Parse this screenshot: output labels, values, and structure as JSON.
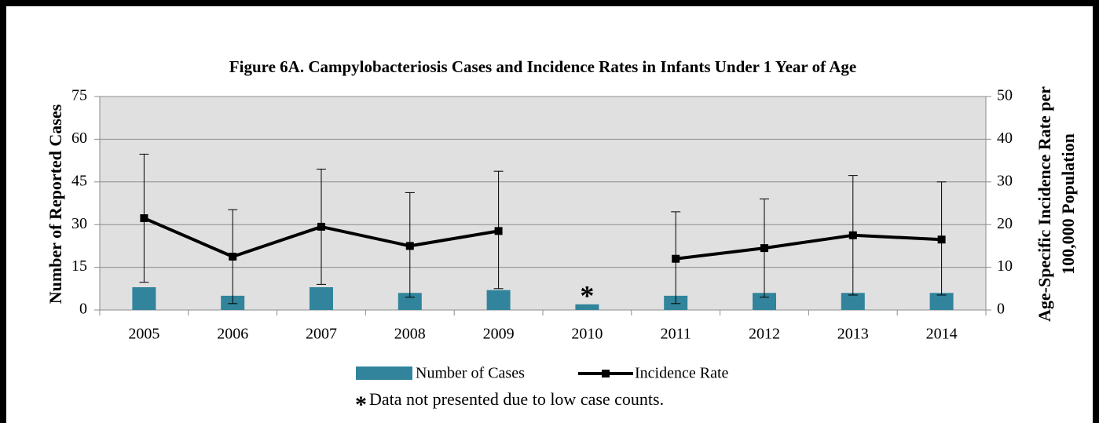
{
  "chart_data": {
    "type": "bar-line",
    "title": "Figure 6A. Campylobacteriosis Cases and Incidence Rates in Infants Under 1 Year of Age",
    "ylabel": "Number of Reported Cases",
    "y2label": [
      "Age-Specific Incidence Rate per",
      "100,000 Population"
    ],
    "categories": [
      "2005",
      "2006",
      "2007",
      "2008",
      "2009",
      "2010",
      "2011",
      "2012",
      "2013",
      "2014"
    ],
    "series": [
      {
        "name": "Number of Cases",
        "type": "bar",
        "color": "#31849b",
        "values": [
          8,
          5,
          8,
          6,
          7,
          2,
          5,
          6,
          6,
          6
        ]
      },
      {
        "name": "Incidence Rate",
        "type": "line",
        "axis": "y2",
        "color": "#000000",
        "values": [
          21.5,
          12.5,
          19.5,
          15,
          18.5,
          null,
          12,
          14.5,
          17.5,
          16.5
        ],
        "ci_lower": [
          6.5,
          1.5,
          6,
          3,
          5,
          null,
          1.5,
          3,
          3.5,
          3.5
        ],
        "ci_upper": [
          36.5,
          23.5,
          33,
          27.5,
          32.5,
          null,
          23,
          26,
          31.5,
          30
        ]
      }
    ],
    "ylim": [
      0,
      75
    ],
    "yticks": [
      0,
      15,
      30,
      45,
      60,
      75
    ],
    "y2lim": [
      0,
      50
    ],
    "y2ticks": [
      0,
      10,
      20,
      30,
      40,
      50
    ],
    "grid": true,
    "legend": "bottom",
    "annotations": [
      {
        "text": "*",
        "category": 5
      }
    ],
    "footnote_symbol": "*",
    "footnote": "Data not presented due to low case counts."
  }
}
